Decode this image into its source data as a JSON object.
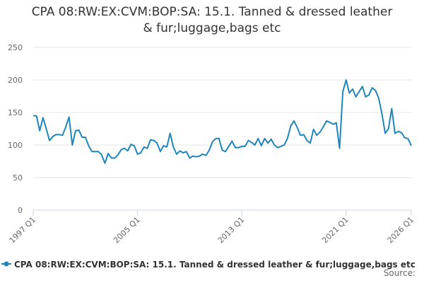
{
  "chart_data": {
    "type": "line",
    "title": "CPA 08:RW:EX:CVM:BOP:SA: 15.1. Tanned & dressed leather & fur;luggage,bags etc",
    "categories": [
      "1997 Q1",
      null,
      null,
      null,
      null,
      null,
      null,
      null,
      null,
      null,
      null,
      null,
      null,
      null,
      null,
      null,
      null,
      null,
      null,
      null,
      null,
      null,
      null,
      null,
      null,
      null,
      null,
      null,
      null,
      null,
      null,
      null,
      "2005 Q1",
      null,
      null,
      null,
      null,
      null,
      null,
      null,
      null,
      null,
      null,
      null,
      null,
      null,
      null,
      null,
      null,
      null,
      null,
      null,
      null,
      null,
      null,
      null,
      null,
      null,
      null,
      null,
      null,
      null,
      null,
      null,
      "2013 Q1",
      null,
      null,
      null,
      null,
      null,
      null,
      null,
      null,
      null,
      null,
      null,
      null,
      null,
      null,
      null,
      null,
      null,
      null,
      null,
      null,
      null,
      null,
      null,
      null,
      null,
      null,
      null,
      null,
      null,
      null,
      null,
      "2021 Q1",
      null,
      null,
      null,
      null,
      null,
      null,
      null,
      null,
      null,
      null,
      null,
      null,
      null,
      null,
      null,
      null,
      null,
      null,
      null,
      "2026 Q1"
    ],
    "series": [
      {
        "name": "CPA 08:RW:EX:CVM:BOP:SA: 15.1. Tanned & dressed leather & fur;luggage,bags etc",
        "color": "#1f86bd",
        "values": [
          145,
          145,
          122,
          142,
          125,
          107,
          113,
          116,
          116,
          115,
          128,
          143,
          100,
          122,
          123,
          112,
          112,
          99,
          90,
          90,
          90,
          85,
          72,
          87,
          80,
          80,
          85,
          93,
          95,
          91,
          101,
          99,
          86,
          88,
          97,
          95,
          108,
          107,
          103,
          90,
          99,
          97,
          118,
          97,
          86,
          91,
          88,
          90,
          80,
          83,
          82,
          83,
          86,
          84,
          92,
          105,
          110,
          110,
          92,
          90,
          98,
          106,
          96,
          96,
          98,
          98,
          107,
          104,
          100,
          110,
          99,
          110,
          103,
          109,
          100,
          96,
          98,
          100,
          110,
          129,
          137,
          127,
          115,
          116,
          107,
          103,
          124,
          115,
          120,
          128,
          137,
          135,
          132,
          134,
          95,
          182,
          200,
          180,
          186,
          174,
          182,
          190,
          174,
          177,
          188,
          184,
          172,
          148,
          118,
          125,
          156,
          118,
          121,
          119,
          111,
          110,
          99
        ]
      }
    ],
    "ylim": [
      0,
      250
    ],
    "yticks": [
      0,
      50,
      100,
      150,
      200,
      250
    ],
    "grid": true,
    "source_label": "Source:"
  }
}
